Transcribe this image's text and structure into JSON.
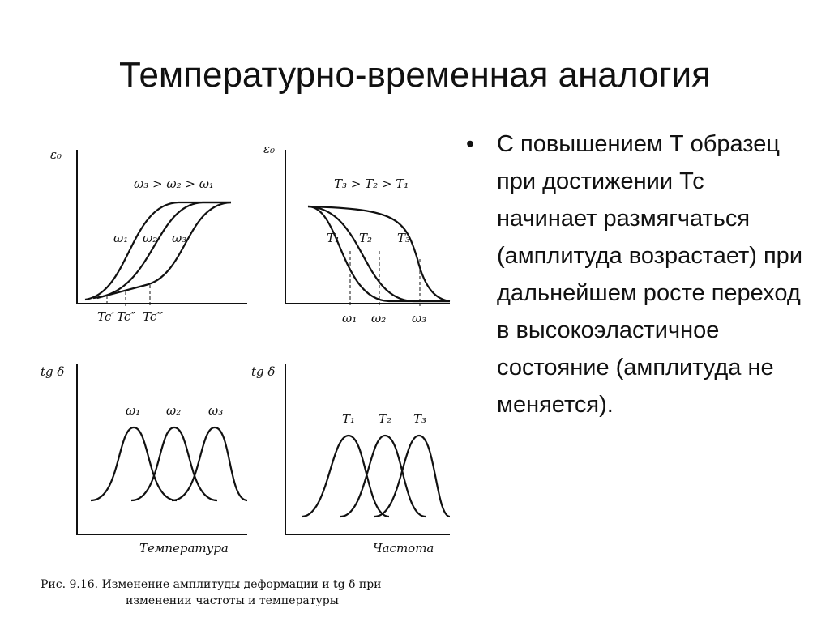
{
  "header": {
    "title": "Температурно-временная аналогия"
  },
  "bullet": {
    "text": "С повышением Т образец при достижении Тс начинает размягчаться (амплитуда возрастает) при дальнейшем росте переход в высокоэластичное состояние (амплитуда не меняется)."
  },
  "figure": {
    "top_left": {
      "y_label": "ε₀",
      "order": "ω₃ > ω₂ > ω₁",
      "curves": [
        "ω₁",
        "ω₂",
        "ω₃"
      ],
      "x_marks": [
        "Tc′",
        "Tc″",
        "Tc‴"
      ]
    },
    "top_right": {
      "y_label": "ε₀",
      "order": "T₃ > T₂ > T₁",
      "curves": [
        "T₁",
        "T₂",
        "T₃"
      ],
      "x_marks": [
        "ω₁",
        "ω₂",
        "ω₃"
      ]
    },
    "bottom_left": {
      "y_label": "tg δ",
      "curves": [
        "ω₁",
        "ω₂",
        "ω₃"
      ],
      "x_label": "Температура"
    },
    "bottom_right": {
      "y_label": "tg δ",
      "curves": [
        "T₁",
        "T₂",
        "T₃"
      ],
      "x_label": "Частота"
    },
    "caption": [
      "Рис. 9.16. Изменение амплитуды деформации и tg δ при",
      "изменении частоты и температуры"
    ]
  }
}
